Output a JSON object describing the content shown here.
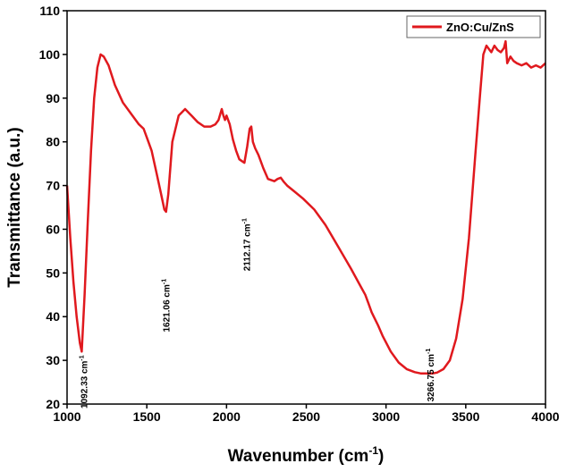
{
  "chart_data": {
    "type": "line",
    "xlabel": "Wavenumber (cm",
    "xlabel_sup": "-1",
    "xlabel_close": ")",
    "ylabel": "Transmittance (a.u.)",
    "xlim": [
      1000,
      4000
    ],
    "ylim": [
      20,
      110
    ],
    "xticks": [
      1000,
      1500,
      2000,
      2500,
      3000,
      3500,
      4000
    ],
    "yticks": [
      20,
      30,
      40,
      50,
      60,
      70,
      80,
      90,
      100,
      110
    ],
    "grid": false,
    "legend": "top-right",
    "colors": {
      "line": "#e0191e",
      "axis": "#000000"
    },
    "series": [
      {
        "name": "ZnO:Cu/ZnS",
        "x": [
          1000,
          1020,
          1040,
          1060,
          1080,
          1092,
          1110,
          1130,
          1150,
          1170,
          1190,
          1210,
          1230,
          1260,
          1300,
          1350,
          1400,
          1450,
          1480,
          1500,
          1530,
          1560,
          1590,
          1610,
          1621,
          1635,
          1660,
          1700,
          1740,
          1780,
          1820,
          1860,
          1900,
          1930,
          1950,
          1970,
          1980,
          1990,
          2000,
          2020,
          2040,
          2060,
          2080,
          2100,
          2112,
          2130,
          2145,
          2155,
          2165,
          2180,
          2200,
          2230,
          2260,
          2300,
          2320,
          2340,
          2360,
          2380,
          2420,
          2480,
          2550,
          2620,
          2700,
          2780,
          2840,
          2870,
          2890,
          2910,
          2930,
          2950,
          2980,
          3030,
          3080,
          3130,
          3180,
          3220,
          3260,
          3290,
          3320,
          3360,
          3400,
          3440,
          3480,
          3520,
          3560,
          3590,
          3610,
          3630,
          3650,
          3660,
          3680,
          3700,
          3720,
          3740,
          3750,
          3760,
          3780,
          3800,
          3820,
          3850,
          3880,
          3910,
          3940,
          3970,
          4000
        ],
        "y": [
          70,
          58,
          48,
          40,
          34,
          32,
          45,
          62,
          78,
          90,
          97,
          100,
          99.5,
          97.5,
          93,
          89,
          86.5,
          84,
          83,
          81,
          78,
          73,
          68,
          64.5,
          64,
          68,
          80,
          86,
          87.5,
          86,
          84.5,
          83.5,
          83.5,
          84,
          85,
          87.5,
          86,
          85,
          86,
          84,
          80.5,
          78,
          76,
          75.5,
          75.2,
          79,
          83,
          83.5,
          80,
          78.5,
          77,
          74,
          71.5,
          71,
          71.5,
          71.8,
          70.8,
          70,
          68.8,
          67,
          64.5,
          61,
          56,
          51,
          47,
          45,
          43,
          41,
          39.5,
          38,
          35.5,
          32,
          29.5,
          28,
          27.3,
          27,
          27,
          27,
          27.2,
          28,
          30,
          35,
          44,
          58,
          77,
          91,
          100,
          102,
          101,
          100.5,
          102,
          101,
          100.5,
          101.5,
          103,
          98,
          99.5,
          98.5,
          98,
          97.5,
          98,
          97,
          97.5,
          97,
          98
        ]
      }
    ],
    "annotations": [
      {
        "text": "1092.33 cm",
        "sup": "-1",
        "x": 1092,
        "y": 32
      },
      {
        "text": "1621.06 cm",
        "sup": "-1",
        "x": 1621,
        "y": 64
      },
      {
        "text": "2112.17 cm",
        "sup": "-1",
        "x": 2112,
        "y": 75.2
      },
      {
        "text": "3266.75 cm",
        "sup": "-1",
        "x": 3266,
        "y": 27
      }
    ]
  }
}
